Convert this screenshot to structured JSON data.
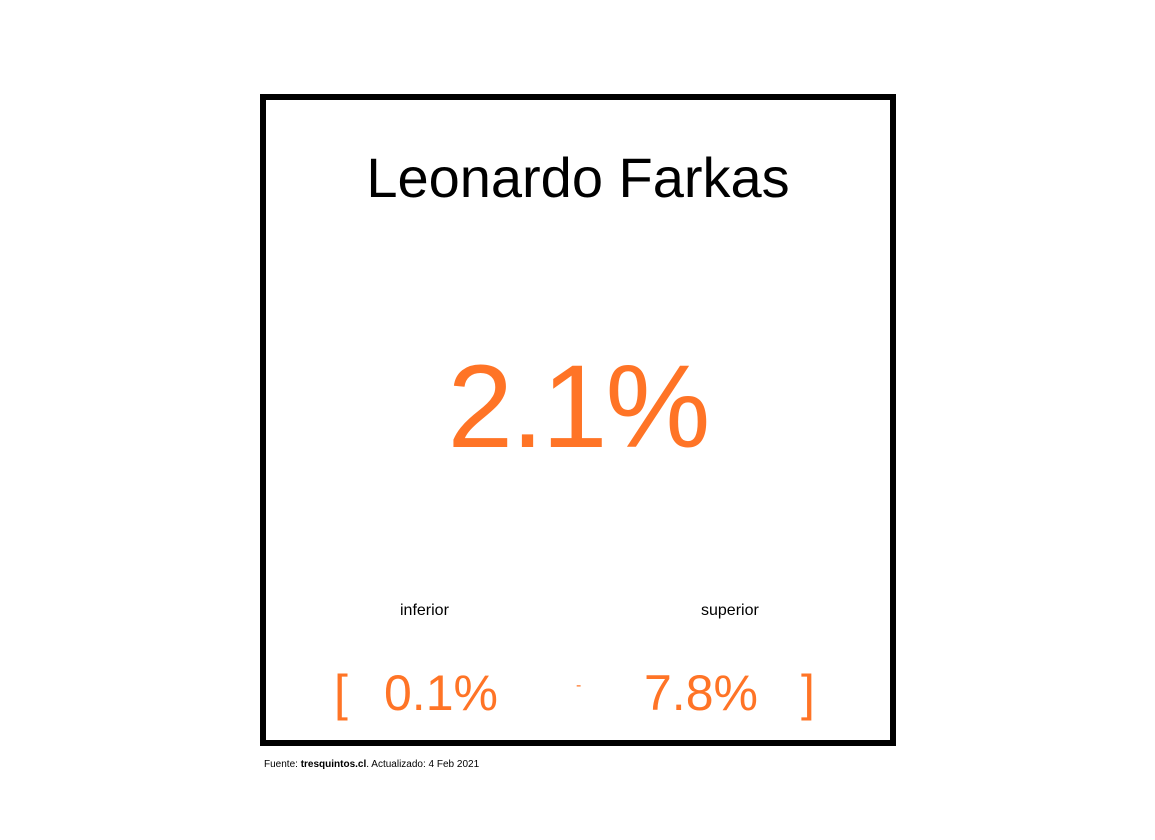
{
  "chart_data": {
    "type": "table",
    "title": "Leonardo Farkas",
    "value": "2.1%",
    "lower_label": "inferior",
    "upper_label": "superior",
    "bracket_open": "[",
    "lower_value": "0.1%",
    "separator": "-",
    "upper_value": "7.8%",
    "bracket_close": "]",
    "accent_color": "#ff7426"
  },
  "footer": {
    "source_label": "Fuente: ",
    "source_name": "tresquintos.cl",
    "updated_text": ". Actualizado: 4 Feb 2021"
  }
}
